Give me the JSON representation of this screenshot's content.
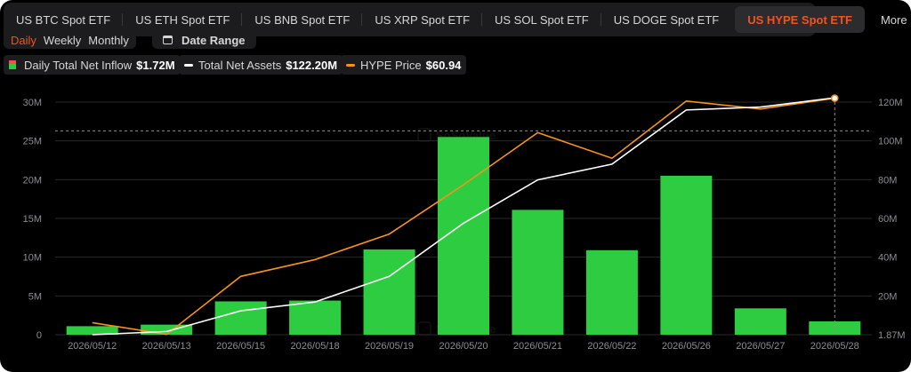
{
  "tabs": [
    {
      "label": "US BTC Spot ETF"
    },
    {
      "label": "US ETH Spot ETF"
    },
    {
      "label": "US BNB Spot ETF"
    },
    {
      "label": "US XRP Spot ETF"
    },
    {
      "label": "US SOL Spot ETF"
    },
    {
      "label": "US DOGE Spot ETF"
    },
    {
      "label": "US HYPE Spot ETF"
    },
    {
      "label": "More"
    }
  ],
  "active_tab": "US HYPE Spot ETF",
  "periods": [
    "Daily",
    "Weekly",
    "Monthly"
  ],
  "active_period": "Daily",
  "date_range_label": "Date Range",
  "legend": {
    "inflow_label": "Daily Total Net Inflow",
    "inflow_value": "$1.72M",
    "assets_label": "Total Net Assets",
    "assets_value": "$122.20M",
    "price_label": "HYPE Price",
    "price_value": "$60.94"
  },
  "colors": {
    "inflow_positive": "#2ecc40",
    "inflow_negative": "#ff4d4f",
    "net_assets": "#ffffff",
    "price": "#f7931a",
    "active_accent": "#f0541e"
  },
  "chart_data": {
    "type": "bar",
    "categories": [
      "2026/05/12",
      "2026/05/13",
      "2026/05/15",
      "2026/05/18",
      "2026/05/19",
      "2026/05/20",
      "2026/05/21",
      "2026/05/22",
      "2026/05/26",
      "2026/05/27",
      "2026/05/28"
    ],
    "series": [
      {
        "name": "Daily Total Net Inflow",
        "type": "bar",
        "axis": "left",
        "values": [
          1.1,
          1.3,
          4.3,
          4.4,
          11.0,
          25.5,
          16.1,
          10.9,
          20.5,
          3.4,
          1.72
        ]
      },
      {
        "name": "Total Net Assets",
        "type": "line",
        "axis": "right",
        "values": [
          1.87,
          3.5,
          14.0,
          18.5,
          31.5,
          58.5,
          80.5,
          88.5,
          116.0,
          117.5,
          122.2
        ]
      },
      {
        "name": "HYPE Price",
        "type": "line",
        "axis": "right",
        "values": [
          8.0,
          2.0,
          31.5,
          40.0,
          53.0,
          78.0,
          104.5,
          91.5,
          120.5,
          116.5,
          122.0
        ]
      }
    ],
    "left_ticks": [
      "0",
      "5M",
      "10M",
      "15M",
      "20M",
      "25M",
      "30M"
    ],
    "left_range": [
      0,
      30
    ],
    "right_ticks": [
      "1.87M",
      "20M",
      "40M",
      "60M",
      "80M",
      "100M",
      "120M"
    ],
    "right_range": [
      1.87,
      120
    ],
    "crosshair_left_value": 26.3,
    "grid": true
  }
}
